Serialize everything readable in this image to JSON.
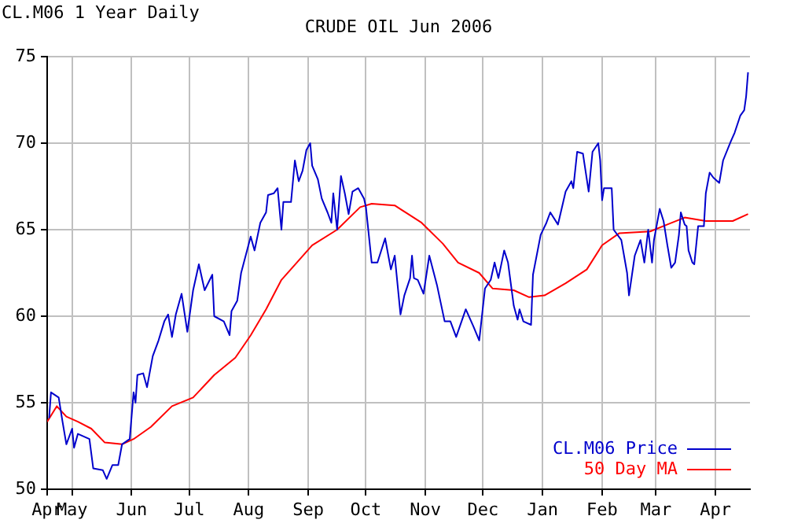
{
  "chart_data": {
    "type": "line",
    "title": "CRUDE OIL Jun 2006",
    "subtitle": "CL.M06 1 Year Daily",
    "xlim": [
      "2005-04-18",
      "2006-04-19"
    ],
    "xticks": [
      {
        "value": "2005-04-18",
        "label": "Apr"
      },
      {
        "value": "2005-05-01",
        "label": "May"
      },
      {
        "value": "2005-06-01",
        "label": "Jun"
      },
      {
        "value": "2005-07-01",
        "label": "Jul"
      },
      {
        "value": "2005-08-01",
        "label": "Aug"
      },
      {
        "value": "2005-09-01",
        "label": "Sep"
      },
      {
        "value": "2005-10-01",
        "label": "Oct"
      },
      {
        "value": "2005-11-01",
        "label": "Nov"
      },
      {
        "value": "2005-12-01",
        "label": "Dec"
      },
      {
        "value": "2006-01-01",
        "label": "Jan"
      },
      {
        "value": "2006-02-01",
        "label": "Feb"
      },
      {
        "value": "2006-03-01",
        "label": "Mar"
      },
      {
        "value": "2006-04-01",
        "label": "Apr"
      }
    ],
    "ylim": [
      50,
      75
    ],
    "yticks": [
      50,
      55,
      60,
      65,
      70,
      75
    ],
    "grid": true,
    "legend": "bottom right",
    "marker": "none",
    "line_style": "solid",
    "series": [
      {
        "name": "CL.M06 Price",
        "color": "#0000cc",
        "x": [
          "2005-04-19",
          "2005-04-20",
          "2005-04-24",
          "2005-04-26",
          "2005-04-28",
          "2005-05-01",
          "2005-05-02",
          "2005-05-04",
          "2005-05-10",
          "2005-05-12",
          "2005-05-17",
          "2005-05-19",
          "2005-05-22",
          "2005-05-25",
          "2005-05-27",
          "2005-05-31",
          "2005-06-02",
          "2005-06-03",
          "2005-06-04",
          "2005-06-07",
          "2005-06-09",
          "2005-06-12",
          "2005-06-15",
          "2005-06-18",
          "2005-06-20",
          "2005-06-22",
          "2005-06-24",
          "2005-06-27",
          "2005-06-30",
          "2005-07-03",
          "2005-07-06",
          "2005-07-09",
          "2005-07-13",
          "2005-07-14",
          "2005-07-19",
          "2005-07-22",
          "2005-07-23",
          "2005-07-26",
          "2005-07-28",
          "2005-08-02",
          "2005-08-04",
          "2005-08-07",
          "2005-08-10",
          "2005-08-11",
          "2005-08-14",
          "2005-08-16",
          "2005-08-18",
          "2005-08-19",
          "2005-08-23",
          "2005-08-25",
          "2005-08-27",
          "2005-08-29",
          "2005-08-31",
          "2005-09-02",
          "2005-09-03",
          "2005-09-06",
          "2005-09-08",
          "2005-09-11",
          "2005-09-13",
          "2005-09-14",
          "2005-09-16",
          "2005-09-18",
          "2005-09-20",
          "2005-09-22",
          "2005-09-24",
          "2005-09-27",
          "2005-09-30",
          "2005-10-01",
          "2005-10-04",
          "2005-10-07",
          "2005-10-11",
          "2005-10-14",
          "2005-10-16",
          "2005-10-19",
          "2005-10-21",
          "2005-10-24",
          "2005-10-25",
          "2005-10-26",
          "2005-10-28",
          "2005-10-31",
          "2005-11-03",
          "2005-11-07",
          "2005-11-11",
          "2005-11-14",
          "2005-11-17",
          "2005-11-22",
          "2005-11-26",
          "2005-11-29",
          "2005-12-02",
          "2005-12-05",
          "2005-12-07",
          "2005-12-09",
          "2005-12-12",
          "2005-12-14",
          "2005-12-17",
          "2005-12-19",
          "2005-12-20",
          "2005-12-22",
          "2005-12-26",
          "2005-12-27",
          "2005-12-31",
          "2006-01-03",
          "2006-01-05",
          "2006-01-09",
          "2006-01-13",
          "2006-01-16",
          "2006-01-17",
          "2006-01-19",
          "2006-01-22",
          "2006-01-25",
          "2006-01-27",
          "2006-01-30",
          "2006-01-31",
          "2006-02-01",
          "2006-02-02",
          "2006-02-06",
          "2006-02-07",
          "2006-02-11",
          "2006-02-14",
          "2006-02-15",
          "2006-02-18",
          "2006-02-21",
          "2006-02-23",
          "2006-02-25",
          "2006-02-27",
          "2006-02-28",
          "2006-03-03",
          "2006-03-05",
          "2006-03-07",
          "2006-03-09",
          "2006-03-11",
          "2006-03-13",
          "2006-03-14",
          "2006-03-16",
          "2006-03-17",
          "2006-03-18",
          "2006-03-20",
          "2006-03-21",
          "2006-03-23",
          "2006-03-26",
          "2006-03-27",
          "2006-03-29",
          "2006-03-31",
          "2006-04-03",
          "2006-04-05",
          "2006-04-09",
          "2006-04-11",
          "2006-04-14",
          "2006-04-16",
          "2006-04-17",
          "2006-04-18"
        ],
        "values": [
          54.1,
          55.6,
          55.3,
          53.9,
          52.6,
          53.5,
          52.4,
          53.2,
          52.9,
          51.2,
          51.1,
          50.6,
          51.4,
          51.4,
          52.6,
          52.9,
          55.6,
          55.0,
          56.6,
          56.7,
          55.9,
          57.7,
          58.6,
          59.7,
          60.1,
          58.8,
          60.1,
          61.3,
          59.1,
          61.5,
          63.0,
          61.5,
          62.4,
          60.0,
          59.7,
          58.9,
          60.3,
          60.9,
          62.5,
          64.6,
          63.8,
          65.4,
          66.0,
          67.0,
          67.1,
          67.4,
          65.0,
          66.6,
          66.6,
          69.0,
          67.8,
          68.4,
          69.6,
          70.0,
          68.7,
          67.9,
          66.8,
          66.0,
          65.4,
          67.1,
          65.0,
          68.1,
          67.1,
          65.9,
          67.2,
          67.4,
          66.8,
          66.3,
          63.1,
          63.1,
          64.5,
          62.7,
          63.5,
          60.1,
          61.2,
          62.2,
          63.5,
          62.2,
          62.1,
          61.3,
          63.5,
          61.8,
          59.7,
          59.7,
          58.8,
          60.4,
          59.4,
          58.6,
          61.6,
          62.1,
          63.1,
          62.2,
          63.8,
          63.1,
          60.6,
          59.8,
          60.4,
          59.7,
          59.5,
          62.4,
          64.7,
          65.4,
          66.0,
          65.3,
          67.2,
          67.8,
          67.4,
          69.5,
          69.4,
          67.2,
          69.5,
          70.0,
          69.0,
          66.7,
          67.4,
          67.4,
          65.0,
          64.4,
          62.5,
          61.2,
          63.5,
          64.4,
          63.1,
          65.0,
          63.1,
          64.4,
          66.2,
          65.5,
          64.1,
          62.8,
          63.1,
          64.7,
          66.0,
          65.3,
          65.2,
          63.8,
          63.1,
          63.0,
          65.2,
          65.2,
          67.1,
          68.3,
          68.0,
          67.7,
          69.0,
          70.1,
          70.6,
          71.6,
          71.9,
          72.7,
          74.1
        ]
      },
      {
        "name": "50 Day MA",
        "color": "#ff0000",
        "x": [
          "2005-04-18",
          "2005-04-23",
          "2005-04-28",
          "2005-05-04",
          "2005-05-11",
          "2005-05-18",
          "2005-05-27",
          "2005-06-02",
          "2005-06-11",
          "2005-06-22",
          "2005-07-03",
          "2005-07-14",
          "2005-07-25",
          "2005-08-02",
          "2005-08-10",
          "2005-08-18",
          "2005-08-26",
          "2005-09-03",
          "2005-09-16",
          "2005-09-28",
          "2005-10-04",
          "2005-10-16",
          "2005-10-23",
          "2005-10-30",
          "2005-11-10",
          "2005-11-18",
          "2005-11-29",
          "2005-12-06",
          "2005-12-17",
          "2005-12-25",
          "2006-01-02",
          "2006-01-13",
          "2006-01-24",
          "2006-02-01",
          "2006-02-10",
          "2006-02-26",
          "2006-03-07",
          "2006-03-16",
          "2006-03-27",
          "2006-04-10",
          "2006-04-18"
        ],
        "values": [
          53.9,
          54.8,
          54.2,
          53.9,
          53.5,
          52.7,
          52.6,
          52.9,
          53.6,
          54.8,
          55.3,
          56.6,
          57.6,
          58.9,
          60.4,
          62.1,
          63.1,
          64.1,
          65.0,
          66.3,
          66.5,
          66.4,
          65.9,
          65.4,
          64.2,
          63.1,
          62.5,
          61.6,
          61.5,
          61.1,
          61.2,
          61.9,
          62.7,
          64.1,
          64.8,
          64.9,
          65.3,
          65.7,
          65.5,
          65.5,
          65.9
        ]
      }
    ]
  }
}
